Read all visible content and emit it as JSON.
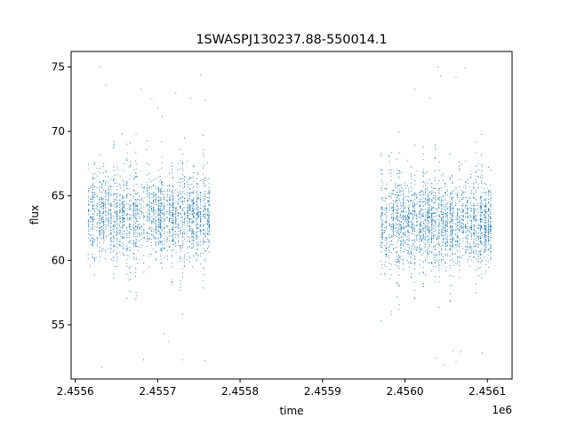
{
  "chart_data": {
    "type": "scatter",
    "title": "1SWASPJ130237.88-550014.1",
    "xlabel": "time",
    "ylabel": "flux",
    "x_offset_label": "1e6",
    "xlim": [
      2455595,
      2456130
    ],
    "ylim": [
      50.8,
      76.2
    ],
    "x_ticks": [
      2455600,
      2455700,
      2455800,
      2455900,
      2456000,
      2456100
    ],
    "x_tick_labels": [
      "2.4556",
      "2.4557",
      "2.4558",
      "2.4559",
      "2.4560",
      "2.4561"
    ],
    "y_ticks": [
      55,
      60,
      65,
      70,
      75
    ],
    "y_tick_labels": [
      "55",
      "60",
      "65",
      "70",
      "75"
    ],
    "grid": false,
    "series": [
      {
        "color": "#1f77b4",
        "marker": "point",
        "segments": [
          {
            "x_start": 2455615,
            "x_end": 2455765,
            "center": 63.5,
            "spread": 2.2
          },
          {
            "x_start": 2455970,
            "x_end": 2456105,
            "center": 63.0,
            "spread": 2.2
          }
        ],
        "outliers": [
          {
            "x": 2455630,
            "y": 75.0
          },
          {
            "x": 2455637,
            "y": 73.6
          },
          {
            "x": 2455657,
            "y": 69.8
          },
          {
            "x": 2455680,
            "y": 73.3
          },
          {
            "x": 2455693,
            "y": 72.5
          },
          {
            "x": 2455700,
            "y": 71.8
          },
          {
            "x": 2455722,
            "y": 73.0
          },
          {
            "x": 2455740,
            "y": 72.6
          },
          {
            "x": 2455752,
            "y": 74.4
          },
          {
            "x": 2455758,
            "y": 72.4
          },
          {
            "x": 2455632,
            "y": 51.7
          },
          {
            "x": 2455683,
            "y": 52.3
          },
          {
            "x": 2455708,
            "y": 54.3
          },
          {
            "x": 2455713,
            "y": 53.7
          },
          {
            "x": 2455730,
            "y": 52.3
          },
          {
            "x": 2455757,
            "y": 52.2
          },
          {
            "x": 2456012,
            "y": 73.3
          },
          {
            "x": 2456030,
            "y": 72.6
          },
          {
            "x": 2456040,
            "y": 75.0
          },
          {
            "x": 2456043,
            "y": 74.3
          },
          {
            "x": 2456062,
            "y": 74.2
          },
          {
            "x": 2456073,
            "y": 74.9
          },
          {
            "x": 2456038,
            "y": 52.4
          },
          {
            "x": 2456047,
            "y": 51.9
          },
          {
            "x": 2456058,
            "y": 53.0
          },
          {
            "x": 2456062,
            "y": 52.1
          },
          {
            "x": 2456068,
            "y": 52.9
          },
          {
            "x": 2456094,
            "y": 52.8
          }
        ]
      }
    ]
  }
}
